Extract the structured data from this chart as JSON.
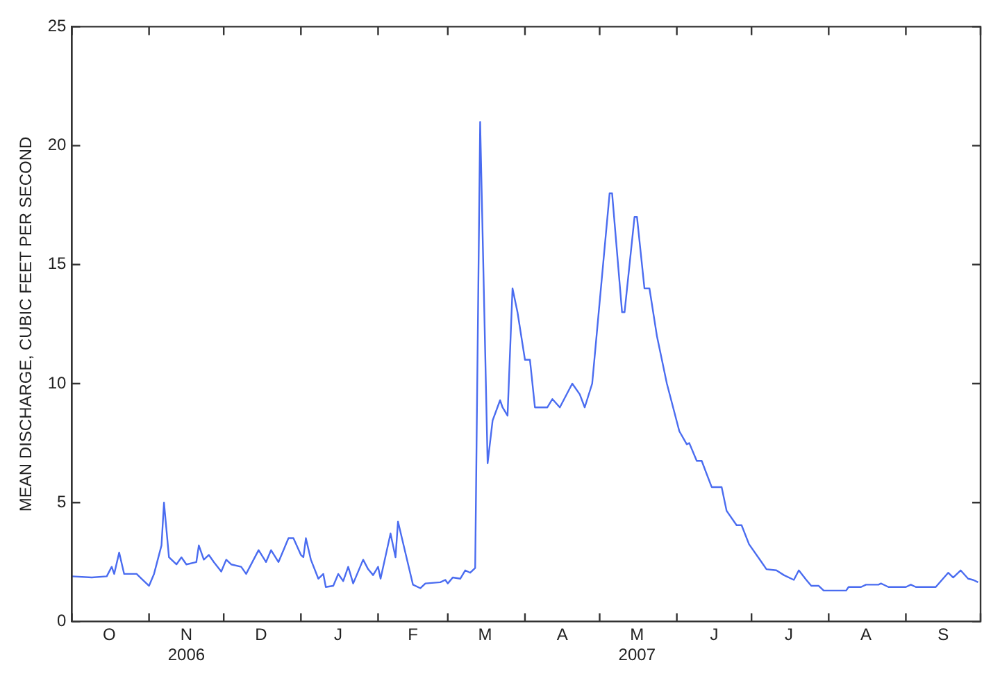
{
  "chart_data": {
    "type": "line",
    "ylabel": "MEAN DISCHARGE, CUBIC FEET PER SECOND",
    "x": [
      "2006-10-01",
      "2006-10-09",
      "2006-10-15",
      "2006-10-17",
      "2006-10-18",
      "2006-10-20",
      "2006-10-22",
      "2006-10-27",
      "2006-10-29",
      "2006-11-01",
      "2006-11-03",
      "2006-11-06",
      "2006-11-07",
      "2006-11-09",
      "2006-11-12",
      "2006-11-14",
      "2006-11-16",
      "2006-11-20",
      "2006-11-21",
      "2006-11-23",
      "2006-11-25",
      "2006-11-27",
      "2006-11-30",
      "2006-12-02",
      "2006-12-04",
      "2006-12-08",
      "2006-12-10",
      "2006-12-15",
      "2006-12-18",
      "2006-12-20",
      "2006-12-23",
      "2006-12-25",
      "2006-12-27",
      "2006-12-29",
      "2007-01-01",
      "2007-01-02",
      "2007-01-03",
      "2007-01-05",
      "2007-01-08",
      "2007-01-10",
      "2007-01-11",
      "2007-01-14",
      "2007-01-16",
      "2007-01-18",
      "2007-01-20",
      "2007-01-22",
      "2007-01-26",
      "2007-01-28",
      "2007-01-30",
      "2007-02-01",
      "2007-02-02",
      "2007-02-06",
      "2007-02-08",
      "2007-02-09",
      "2007-02-15",
      "2007-02-18",
      "2007-02-20",
      "2007-02-26",
      "2007-02-28",
      "2007-03-01",
      "2007-03-03",
      "2007-03-06",
      "2007-03-08",
      "2007-03-10",
      "2007-03-12",
      "2007-03-14",
      "2007-03-17",
      "2007-03-19",
      "2007-03-22",
      "2007-03-23",
      "2007-03-25",
      "2007-03-27",
      "2007-03-29",
      "2007-04-01",
      "2007-04-03",
      "2007-04-05",
      "2007-04-10",
      "2007-04-12",
      "2007-04-15",
      "2007-04-20",
      "2007-04-23",
      "2007-04-25",
      "2007-04-28",
      "2007-05-05",
      "2007-05-06",
      "2007-05-10",
      "2007-05-11",
      "2007-05-15",
      "2007-05-16",
      "2007-05-19",
      "2007-05-21",
      "2007-05-24",
      "2007-05-26",
      "2007-05-28",
      "2007-06-02",
      "2007-06-05",
      "2007-06-06",
      "2007-06-09",
      "2007-06-11",
      "2007-06-15",
      "2007-06-19",
      "2007-06-21",
      "2007-06-25",
      "2007-06-27",
      "2007-06-30",
      "2007-07-05",
      "2007-07-07",
      "2007-07-11",
      "2007-07-14",
      "2007-07-18",
      "2007-07-20",
      "2007-07-23",
      "2007-07-25",
      "2007-07-28",
      "2007-07-30",
      "2007-08-08",
      "2007-08-09",
      "2007-08-14",
      "2007-08-16",
      "2007-08-21",
      "2007-08-22",
      "2007-08-25",
      "2007-09-01",
      "2007-09-03",
      "2007-09-05",
      "2007-09-13",
      "2007-09-18",
      "2007-09-20",
      "2007-09-23",
      "2007-09-26",
      "2007-09-28",
      "2007-09-30"
    ],
    "series": [
      {
        "color": "#4a6cf0",
        "values": [
          1.9,
          1.85,
          1.9,
          2.3,
          2.0,
          2.9,
          2.0,
          2.0,
          1.8,
          1.5,
          2.0,
          3.2,
          5.0,
          2.7,
          2.4,
          2.7,
          2.4,
          2.5,
          3.2,
          2.6,
          2.8,
          2.5,
          2.1,
          2.6,
          2.4,
          2.3,
          2.0,
          3.0,
          2.5,
          3.0,
          2.5,
          3.0,
          3.5,
          3.5,
          2.8,
          2.7,
          3.5,
          2.6,
          1.8,
          2.0,
          1.45,
          1.5,
          2.0,
          1.7,
          2.3,
          1.6,
          2.6,
          2.2,
          1.95,
          2.3,
          1.8,
          3.7,
          2.7,
          4.2,
          1.55,
          1.4,
          1.6,
          1.65,
          1.75,
          1.6,
          1.85,
          1.8,
          2.15,
          2.05,
          2.25,
          21,
          6.65,
          8.45,
          9.3,
          9.0,
          8.65,
          14,
          13,
          11,
          11,
          9.0,
          9.0,
          9.35,
          9.0,
          10,
          9.55,
          9.0,
          10,
          18,
          18,
          13,
          13,
          17,
          17,
          14,
          14,
          12,
          11,
          10,
          8,
          7.45,
          7.5,
          6.75,
          6.75,
          5.65,
          5.65,
          4.65,
          4.05,
          4.05,
          3.25,
          2.5,
          2.2,
          2.15,
          1.95,
          1.75,
          2.15,
          1.75,
          1.5,
          1.5,
          1.3,
          1.3,
          1.45,
          1.45,
          1.55,
          1.55,
          1.6,
          1.45,
          1.45,
          1.55,
          1.45,
          1.45,
          2.05,
          1.85,
          2.15,
          1.8,
          1.75,
          1.65
        ]
      }
    ],
    "xlim": [
      "2006-10-01",
      "2007-10-01"
    ],
    "xticks": [
      {
        "value": "2006-10-01",
        "label": null
      },
      {
        "value": "2006-10-16",
        "label": "O"
      },
      {
        "value": "2006-11-01",
        "label": null
      },
      {
        "value": "2006-11-16",
        "label": "N\n2006"
      },
      {
        "value": "2006-12-01",
        "label": null
      },
      {
        "value": "2006-12-16",
        "label": "D"
      },
      {
        "value": "2007-01-01",
        "label": null
      },
      {
        "value": "2007-01-16",
        "label": "J"
      },
      {
        "value": "2007-02-01",
        "label": null
      },
      {
        "value": "2007-02-15",
        "label": "F"
      },
      {
        "value": "2007-03-01",
        "label": null
      },
      {
        "value": "2007-03-16",
        "label": "M"
      },
      {
        "value": "2007-04-01",
        "label": null
      },
      {
        "value": "2007-04-16",
        "label": "A"
      },
      {
        "value": "2007-05-01",
        "label": null
      },
      {
        "value": "2007-05-16",
        "label": "M\n2007"
      },
      {
        "value": "2007-06-01",
        "label": null
      },
      {
        "value": "2007-06-16",
        "label": "J"
      },
      {
        "value": "2007-07-01",
        "label": null
      },
      {
        "value": "2007-07-16",
        "label": "J"
      },
      {
        "value": "2007-08-01",
        "label": null
      },
      {
        "value": "2007-08-16",
        "label": "A"
      },
      {
        "value": "2007-09-01",
        "label": null
      },
      {
        "value": "2007-09-16",
        "label": "S"
      },
      {
        "value": "2007-10-01",
        "label": null
      }
    ],
    "ylim": [
      0,
      25
    ],
    "yticks": [
      0,
      5,
      10,
      15,
      20,
      25
    ],
    "grid": false,
    "legend": false,
    "marker": "none",
    "line_style": "solid"
  }
}
